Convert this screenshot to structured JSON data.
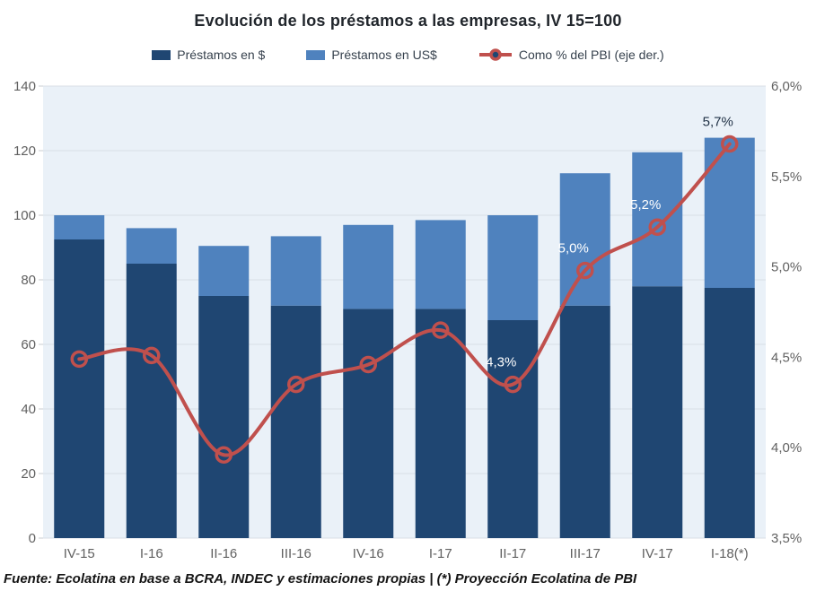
{
  "title": "Evolución de los préstamos a las empresas, IV 15=100",
  "legend": [
    {
      "label": "Préstamos en $",
      "color": "#1F4672",
      "icon": "swatch"
    },
    {
      "label": "Préstamos en US$",
      "color": "#4F82BE",
      "icon": "swatch"
    },
    {
      "label": "Como % del PBI (eje der.)",
      "color": "#C0504D",
      "icon": "line-marker"
    }
  ],
  "footer": "Fuente: Ecolatina en base a BCRA, INDEC y estimaciones propias | (*) Proyección Ecolatina de PBI",
  "chart_data": {
    "type": "bar",
    "subtype": "stacked-bars-with-line",
    "categories": [
      "IV-15",
      "I-16",
      "II-16",
      "III-16",
      "IV-16",
      "I-17",
      "II-17",
      "III-17",
      "IV-17",
      "I-18(*)"
    ],
    "series": [
      {
        "name": "Préstamos en $",
        "type": "bar",
        "color": "#1F4672",
        "values": [
          92.5,
          85,
          75,
          72,
          71,
          71,
          67.5,
          72,
          78,
          77.5
        ]
      },
      {
        "name": "Préstamos en US$",
        "type": "bar",
        "color": "#4F82BE",
        "values": [
          7.5,
          11,
          15.5,
          21.5,
          26,
          27.5,
          32.5,
          41,
          41.5,
          46.5
        ]
      },
      {
        "name": "Como % del PBI (eje der.)",
        "type": "line",
        "axis": "right",
        "color": "#C0504D",
        "values": [
          4.49,
          4.51,
          3.96,
          4.35,
          4.46,
          4.65,
          4.35,
          4.98,
          5.22,
          5.68
        ],
        "point_labels": [
          null,
          null,
          null,
          null,
          null,
          null,
          "4,3%",
          "5,0%",
          "5,2%",
          "5,7%"
        ],
        "point_label_colors": [
          null,
          null,
          null,
          null,
          null,
          null,
          "#FFFFFF",
          "#FFFFFF",
          "#FFFFFF",
          "#1F3044"
        ]
      }
    ],
    "left_axis": {
      "min": 0,
      "max": 140,
      "ticks": [
        "0",
        "20",
        "40",
        "60",
        "80",
        "100",
        "120",
        "140"
      ]
    },
    "right_axis": {
      "min": 3.5,
      "max": 6.0,
      "ticks": [
        "3,5%",
        "4,0%",
        "4,5%",
        "5,0%",
        "5,5%",
        "6,0%"
      ]
    },
    "grid": true,
    "legend_position": "top",
    "plot_bg": "#EAF1F8",
    "grid_color": "#D8DEE6",
    "tick_color": "#C9CDD2",
    "axis_text_color": "#616161"
  }
}
